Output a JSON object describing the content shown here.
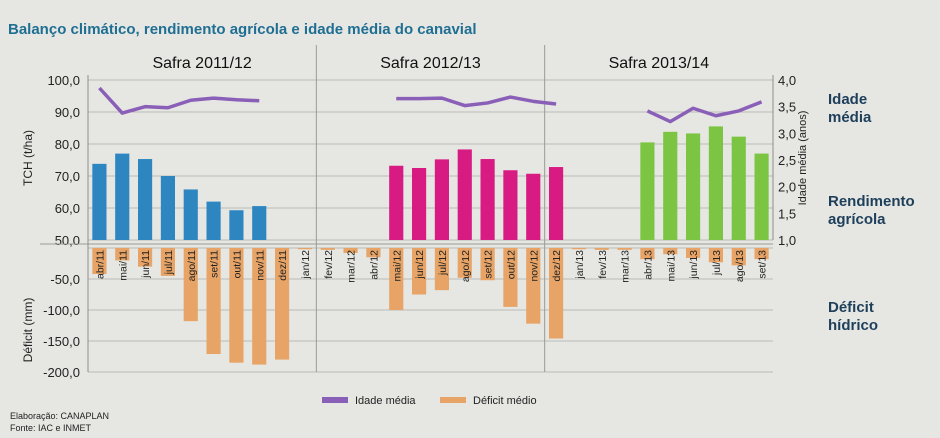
{
  "title": "Balanço climático, rendimento agrícola e idade média do canavial",
  "footer": {
    "line1": "Elaboração: CANAPLAN",
    "line2": "Fonte: IAC e INMET"
  },
  "side_labels": {
    "idade": [
      "Idade",
      "média"
    ],
    "rendimento": [
      "Rendimento",
      "agrícola"
    ],
    "deficit": [
      "Déficit",
      "hídrico"
    ]
  },
  "colors": {
    "idade": "#8a5fb8",
    "deficit": "#e7a466",
    "s1": "#2e86c1",
    "s2": "#d81b82",
    "s3": "#7cc542",
    "title": "#1f6f93"
  },
  "chart_data": {
    "type": "bar",
    "months": [
      "abr/11",
      "mai/11",
      "jun/11",
      "jul/11",
      "ago/11",
      "set/11",
      "out/11",
      "nov/11",
      "dez/11",
      "jan/12",
      "fev/12",
      "mar/12",
      "abr/12",
      "mai/12",
      "jun/12",
      "jul/12",
      "ago/12",
      "set/12",
      "out/12",
      "nov/12",
      "dez/12",
      "jan/13",
      "fev/13",
      "mar/13",
      "abr/13",
      "mai/13",
      "jun/13",
      "jul/13",
      "ago/13",
      "set/13"
    ],
    "safras": [
      {
        "label": "Safra 2011/12",
        "start": 0,
        "end": 10
      },
      {
        "label": "Safra 2012/13",
        "start": 10,
        "end": 20
      },
      {
        "label": "Safra 2013/14",
        "start": 20,
        "end": 30
      }
    ],
    "tch": {
      "ylabel": "TCH (t/ha)",
      "ylim": [
        50,
        100
      ],
      "ticks": [
        "100,0",
        "90,0",
        "80,0",
        "70,0",
        "60,0",
        "50,0"
      ],
      "series": [
        {
          "safra": "Safra 2011/12",
          "categories": [
            "abr/11",
            "mai/11",
            "jun/11",
            "jul/11",
            "ago/11",
            "set/11",
            "out/11",
            "nov/11"
          ],
          "values": [
            73.8,
            77.0,
            75.3,
            70.0,
            65.8,
            62.0,
            59.3,
            60.6
          ]
        },
        {
          "safra": "Safra 2012/13",
          "categories": [
            "mai/12",
            "jun/12",
            "jul/12",
            "ago/12",
            "set/12",
            "out/12",
            "nov/12",
            "dez/12"
          ],
          "values": [
            73.2,
            72.5,
            75.2,
            78.3,
            75.3,
            71.8,
            70.7,
            72.8
          ]
        },
        {
          "safra": "Safra 2013/14",
          "categories": [
            "abr/13",
            "mai/13",
            "jun/13",
            "jul/13",
            "ago/13",
            "set/13"
          ],
          "values": [
            80.5,
            83.8,
            83.3,
            85.5,
            82.3,
            77.0
          ]
        }
      ]
    },
    "idade_media": {
      "ylabel": "Idade média (anos)",
      "ylim": [
        1.0,
        4.0
      ],
      "ticks": [
        "4,0",
        "3,5",
        "3,0",
        "2,5",
        "2,0",
        "1,5",
        "1,0"
      ],
      "name": "Idade média",
      "segments": [
        {
          "categories": [
            "abr/11",
            "mai/11",
            "jun/11",
            "jul/11",
            "ago/11",
            "set/11",
            "out/11",
            "nov/11"
          ],
          "values": [
            3.85,
            3.38,
            3.5,
            3.48,
            3.62,
            3.66,
            3.63,
            3.61
          ]
        },
        {
          "categories": [
            "mai/12",
            "jun/12",
            "jul/12",
            "ago/12",
            "set/12",
            "out/12",
            "nov/12",
            "dez/12"
          ],
          "values": [
            3.65,
            3.65,
            3.66,
            3.52,
            3.57,
            3.68,
            3.6,
            3.55
          ]
        },
        {
          "categories": [
            "abr/13",
            "mai/13",
            "jun/13",
            "jul/13",
            "ago/13",
            "set/13"
          ],
          "values": [
            3.42,
            3.22,
            3.47,
            3.33,
            3.42,
            3.59
          ]
        }
      ]
    },
    "deficit": {
      "ylabel": "Déficit (mm)",
      "ylim": [
        -200,
        0
      ],
      "ticks": [
        "0,0",
        "-50,0",
        "-100,0",
        "-150,0",
        "-200,0"
      ],
      "name": "Déficit médio",
      "values": [
        -42,
        -20,
        -30,
        -45,
        -118,
        -171,
        -185,
        -188,
        -180,
        -2,
        -3,
        -8,
        -15,
        -100,
        -75,
        -68,
        -48,
        -52,
        -95,
        -122,
        -146,
        -2,
        -3,
        -3,
        -18,
        -10,
        -16,
        -23,
        -28,
        -18
      ]
    },
    "legend": [
      "Idade média",
      "Déficit médio"
    ]
  }
}
